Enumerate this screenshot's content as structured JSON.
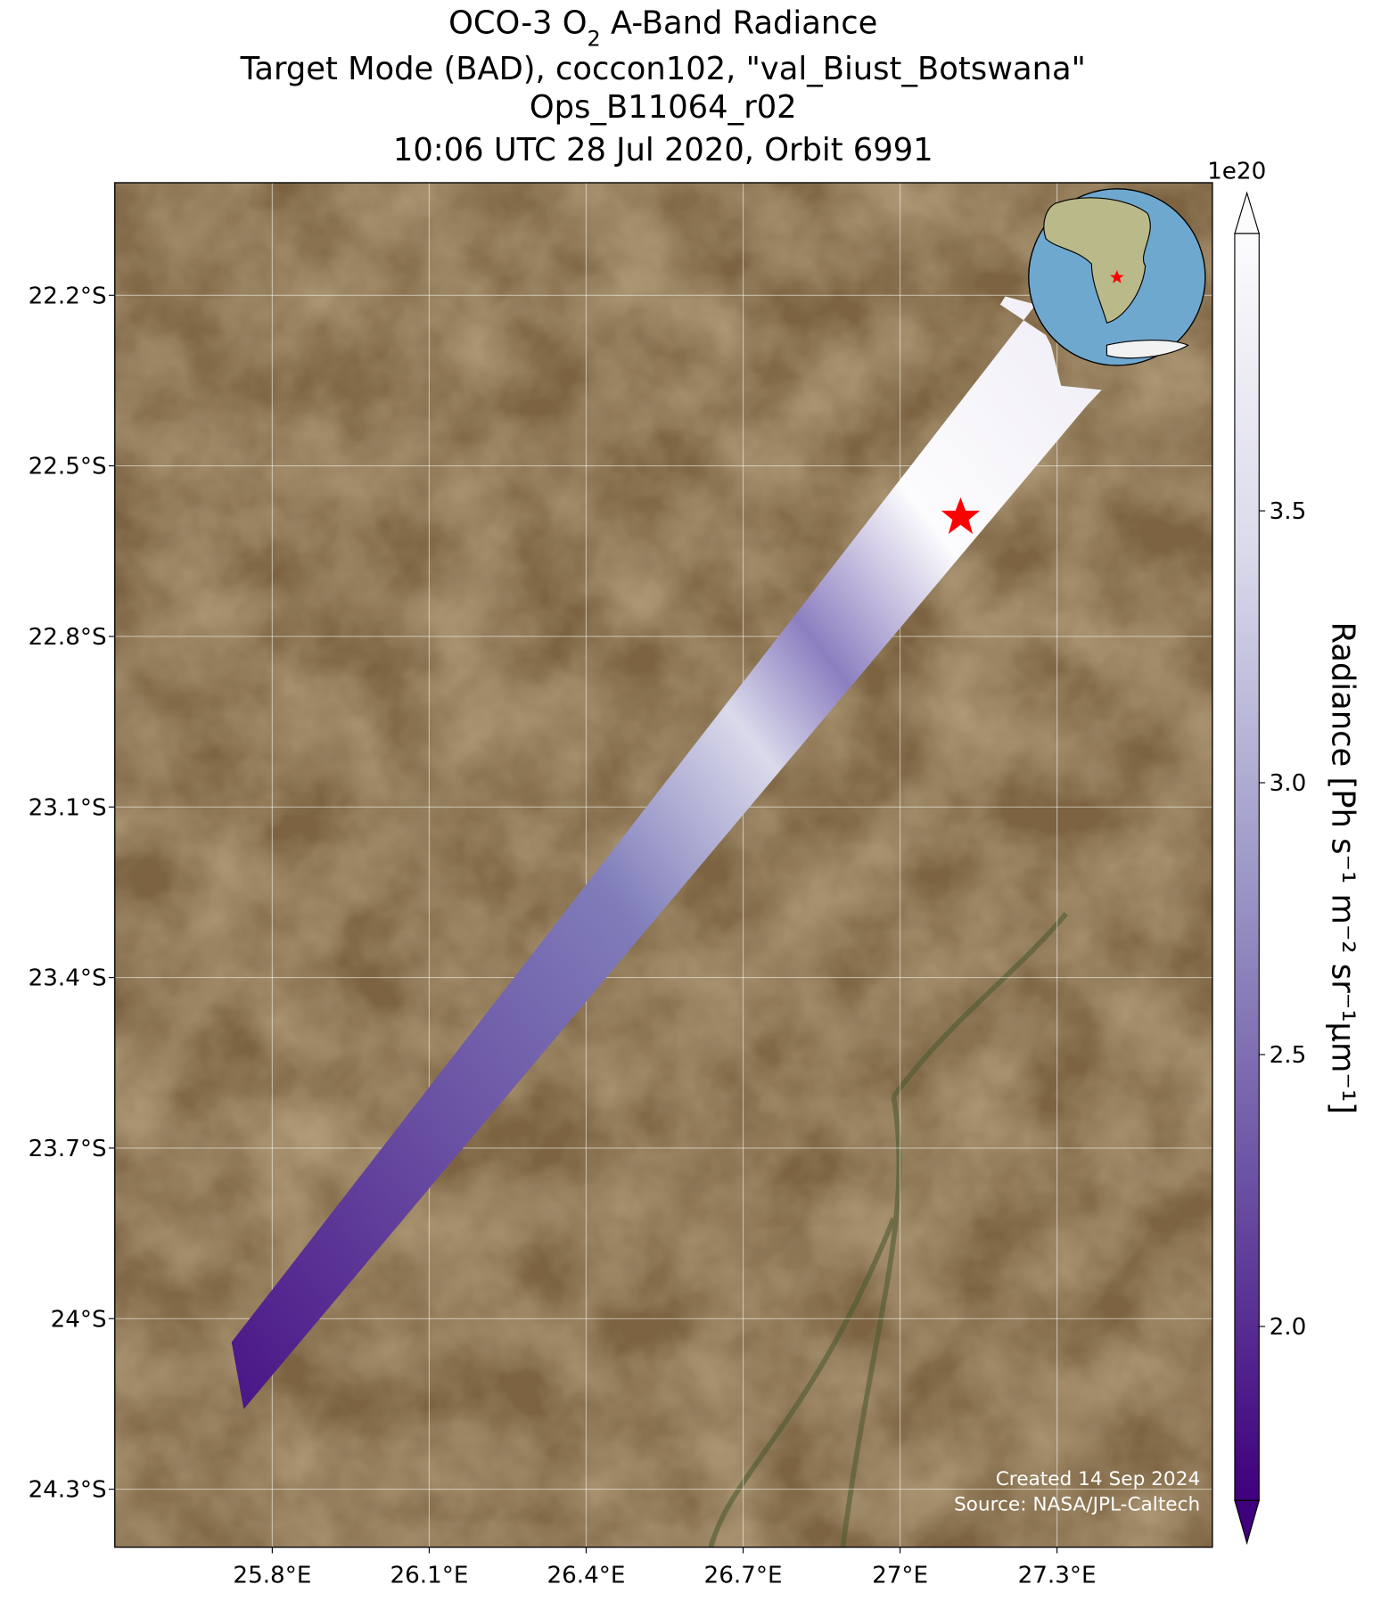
{
  "title": {
    "line1": [
      "OCO-3 O",
      "2",
      " A-Band Radiance"
    ],
    "line2": "Target Mode (BAD), coccon102, \"val_Biust_Botswana\"",
    "line3": "Ops_B11064_r02",
    "line4": "10:06 UTC 28 Jul 2020, Orbit 6991"
  },
  "map": {
    "xlim": [
      25.499,
      27.597
    ],
    "ylim": [
      -24.402,
      -22.002
    ],
    "xticks": [
      {
        "value": 25.8,
        "label": "25.8°E"
      },
      {
        "value": 26.1,
        "label": "26.1°E"
      },
      {
        "value": 26.4,
        "label": "26.4°E"
      },
      {
        "value": 26.7,
        "label": "26.7°E"
      },
      {
        "value": 27.0,
        "label": "27°E"
      },
      {
        "value": 27.3,
        "label": "27.3°E"
      }
    ],
    "yticks": [
      {
        "value": -22.2,
        "label": "22.2°S"
      },
      {
        "value": -22.5,
        "label": "22.5°S"
      },
      {
        "value": -22.8,
        "label": "22.8°S"
      },
      {
        "value": -23.1,
        "label": "23.1°S"
      },
      {
        "value": -23.4,
        "label": "23.4°S"
      },
      {
        "value": -23.7,
        "label": "23.7°S"
      },
      {
        "value": -24.0,
        "label": "24°S"
      },
      {
        "value": -24.3,
        "label": "24.3°S"
      }
    ],
    "grid": true
  },
  "colorbar": {
    "label": "Radiance [Ph s⁻¹ m⁻² sr⁻¹μm⁻¹]",
    "offset": "1e20",
    "clim": [
      1.68,
      4.01
    ],
    "ticks": [
      {
        "value": 2.0,
        "label": "2.0"
      },
      {
        "value": 2.5,
        "label": "2.5"
      },
      {
        "value": 3.0,
        "label": "3.0"
      },
      {
        "value": 3.5,
        "label": "3.5"
      }
    ]
  },
  "footer": {
    "created": "Created 14 Sep 2024",
    "source": "Source: NASA/JPL-Caltech"
  }
}
